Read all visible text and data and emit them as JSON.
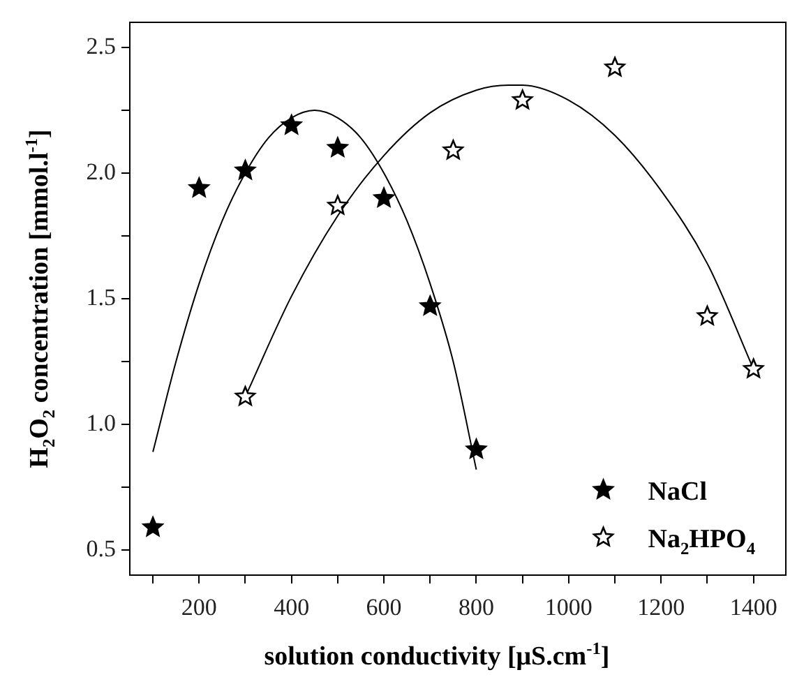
{
  "chart_data": {
    "type": "scatter",
    "xlabel": "solution conductivity [μS.cm$^{-1}$]",
    "ylabel": "H$_{2}$O$_{2}$ concentration [mmol.l$^{-1}$]",
    "xlim": [
      50,
      1470
    ],
    "ylim": [
      0.4,
      2.6
    ],
    "xticks": [
      {
        "value": 100,
        "label": null
      },
      200,
      {
        "value": 300,
        "label": null
      },
      400,
      {
        "value": 500,
        "label": null
      },
      600,
      {
        "value": 700,
        "label": null
      },
      800,
      {
        "value": 900,
        "label": null
      },
      1000,
      {
        "value": 1100,
        "label": null
      },
      1200,
      {
        "value": 1300,
        "label": null
      },
      1400
    ],
    "yticks": [
      {
        "value": 0.5,
        "label": "0.5"
      },
      {
        "value": 0.75,
        "label": null
      },
      {
        "value": 1,
        "label": "1.0"
      },
      {
        "value": 1.25,
        "label": null
      },
      {
        "value": 1.5,
        "label": "1.5"
      },
      {
        "value": 1.75,
        "label": null
      },
      {
        "value": 2,
        "label": "2.0"
      },
      {
        "value": 2.25,
        "label": null
      },
      {
        "value": 2.5,
        "label": "2.5"
      }
    ],
    "grid": false,
    "legend": "bottom right",
    "marker": "star",
    "series": [
      {
        "name": "NaCl",
        "color": "#000000",
        "x": [
          100,
          200,
          300,
          400,
          500,
          600,
          700,
          800
        ],
        "values": [
          0.59,
          1.94,
          2.01,
          2.19,
          2.1,
          1.9,
          1.47,
          0.9
        ]
      },
      {
        "name": "Na$_{2}$HPO$_{4}$",
        "color": "#000000",
        "x": [
          300,
          500,
          750,
          900,
          1100,
          1300,
          1400
        ],
        "values": [
          1.11,
          1.87,
          2.09,
          2.29,
          2.42,
          1.43,
          1.22
        ]
      },
      {
        "type": "line",
        "marker": "none",
        "color": "#000000",
        "x": [
          100,
          150,
          200,
          250,
          300,
          350,
          400,
          450,
          500,
          550,
          600,
          650,
          700,
          750,
          800
        ],
        "values": [
          0.89,
          1.25,
          1.56,
          1.81,
          2.0,
          2.14,
          2.22,
          2.25,
          2.22,
          2.14,
          2.0,
          1.81,
          1.56,
          1.25,
          0.82
        ]
      },
      {
        "type": "line",
        "marker": "none",
        "color": "#000000",
        "x": [
          300,
          400,
          500,
          600,
          700,
          800,
          870,
          900,
          1000,
          1100,
          1200,
          1300,
          1400
        ],
        "values": [
          1.11,
          1.51,
          1.83,
          2.07,
          2.24,
          2.33,
          2.35,
          2.35,
          2.29,
          2.15,
          1.93,
          1.64,
          1.22
        ]
      }
    ]
  }
}
